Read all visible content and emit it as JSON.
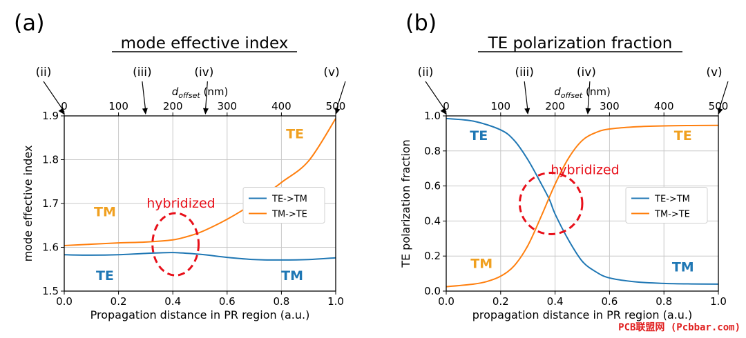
{
  "watermark": "PCB联盟网 (Pcbbar.com)",
  "colors": {
    "blue": "#1f77b4",
    "orange": "#ff7f0e",
    "label_blue": "#1f77b4",
    "label_orange": "#f0a020",
    "red": "#e8101a"
  },
  "chart_data": [
    {
      "type": "line",
      "panel_label": "(a)",
      "title": "mode effective index",
      "xlabel": "Propagation distance in PR region (a.u.)",
      "ylabel": "mode effective index",
      "xlim": [
        0.0,
        1.0
      ],
      "ylim": [
        1.5,
        1.9
      ],
      "xticks": [
        0.0,
        0.2,
        0.4,
        0.6,
        0.8,
        1.0
      ],
      "xtick_labels": [
        "0.0",
        "0.2",
        "0.4",
        "0.6",
        "0.8",
        "1.0"
      ],
      "yticks": [
        1.5,
        1.6,
        1.7,
        1.8,
        1.9
      ],
      "ytick_labels": [
        "1.5",
        "1.6",
        "1.7",
        "1.8",
        "1.9"
      ],
      "top_axis": {
        "label_main": "d",
        "label_sub": "offset",
        "label_unit": "(nm)",
        "ticks": [
          0,
          100,
          200,
          300,
          400,
          500
        ],
        "tick_labels": [
          "0",
          "100",
          "200",
          "300",
          "400",
          "500"
        ],
        "range": [
          0,
          500
        ]
      },
      "markers": [
        {
          "label": "(ii)",
          "x": 0
        },
        {
          "label": "(iii)",
          "x": 150
        },
        {
          "label": "(iv)",
          "x": 260
        },
        {
          "label": "(v)",
          "x": 500
        }
      ],
      "series": [
        {
          "name": "TE->TM",
          "color": "#1f77b4",
          "x": [
            0.0,
            0.1,
            0.2,
            0.3,
            0.4,
            0.5,
            0.6,
            0.7,
            0.8,
            0.9,
            1.0
          ],
          "values": [
            1.583,
            1.582,
            1.583,
            1.586,
            1.588,
            1.584,
            1.577,
            1.572,
            1.571,
            1.572,
            1.576
          ]
        },
        {
          "name": "TM->TE",
          "color": "#ff7f0e",
          "x": [
            0.0,
            0.1,
            0.2,
            0.3,
            0.4,
            0.45,
            0.5,
            0.55,
            0.6,
            0.65,
            0.7,
            0.8,
            0.9,
            1.0
          ],
          "values": [
            1.604,
            1.607,
            1.61,
            1.612,
            1.617,
            1.624,
            1.634,
            1.648,
            1.664,
            1.682,
            1.702,
            1.748,
            1.797,
            1.894
          ]
        }
      ],
      "legend": {
        "placement": "center-right",
        "entries": [
          "TE->TM",
          "TM->TE"
        ]
      },
      "annotations": [
        {
          "text": "TE",
          "x": 0.85,
          "y": 1.858,
          "color": "orange"
        },
        {
          "text": "TM",
          "x": 0.15,
          "y": 1.68,
          "color": "orange"
        },
        {
          "text": "TE",
          "x": 0.15,
          "y": 1.535,
          "color": "blue"
        },
        {
          "text": "TM",
          "x": 0.84,
          "y": 1.535,
          "color": "blue"
        },
        {
          "text": "hybridized",
          "x": 0.43,
          "y": 1.7,
          "color": "red"
        }
      ],
      "circle": {
        "cx": 0.41,
        "cy": 1.607,
        "rx": 0.085,
        "ry": 0.071
      }
    },
    {
      "type": "line",
      "panel_label": "(b)",
      "title": "TE polarization fraction",
      "xlabel": "propagation distance in PR region (a.u.)",
      "ylabel": "TE polarization fraction",
      "xlim": [
        0.0,
        1.0
      ],
      "ylim": [
        0.0,
        1.0
      ],
      "xticks": [
        0.0,
        0.2,
        0.4,
        0.6,
        0.8,
        1.0
      ],
      "xtick_labels": [
        "0.0",
        "0.2",
        "0.4",
        "0.6",
        "0.8",
        "1.0"
      ],
      "yticks": [
        0.0,
        0.2,
        0.4,
        0.6,
        0.8,
        1.0
      ],
      "ytick_labels": [
        "0.0",
        "0.2",
        "0.4",
        "0.6",
        "0.8",
        "1.0"
      ],
      "top_axis": {
        "label_main": "d",
        "label_sub": "offset",
        "label_unit": "(nm)",
        "ticks": [
          0,
          100,
          200,
          300,
          400,
          500
        ],
        "tick_labels": [
          "0",
          "100",
          "200",
          "300",
          "400",
          "500"
        ],
        "range": [
          0,
          500
        ]
      },
      "markers": [
        {
          "label": "(ii)",
          "x": 0
        },
        {
          "label": "(iii)",
          "x": 150
        },
        {
          "label": "(iv)",
          "x": 260
        },
        {
          "label": "(v)",
          "x": 500
        }
      ],
      "series": [
        {
          "name": "TE->TM",
          "color": "#1f77b4",
          "x": [
            0.0,
            0.1,
            0.2,
            0.25,
            0.3,
            0.35,
            0.38,
            0.4,
            0.45,
            0.5,
            0.55,
            0.6,
            0.7,
            0.8,
            0.9,
            1.0
          ],
          "values": [
            0.985,
            0.97,
            0.92,
            0.86,
            0.75,
            0.61,
            0.52,
            0.44,
            0.29,
            0.17,
            0.11,
            0.075,
            0.052,
            0.044,
            0.041,
            0.04
          ]
        },
        {
          "name": "TM->TE",
          "color": "#ff7f0e",
          "x": [
            0.0,
            0.1,
            0.15,
            0.2,
            0.25,
            0.3,
            0.35,
            0.4,
            0.45,
            0.5,
            0.55,
            0.6,
            0.7,
            0.8,
            0.9,
            1.0
          ],
          "values": [
            0.025,
            0.04,
            0.055,
            0.085,
            0.145,
            0.26,
            0.43,
            0.61,
            0.76,
            0.86,
            0.905,
            0.925,
            0.938,
            0.943,
            0.945,
            0.946
          ]
        }
      ],
      "legend": {
        "placement": "center-right",
        "entries": [
          "TE->TM",
          "TM->TE"
        ]
      },
      "annotations": [
        {
          "text": "TE",
          "x": 0.12,
          "y": 0.885,
          "color": "blue"
        },
        {
          "text": "TE",
          "x": 0.87,
          "y": 0.885,
          "color": "orange"
        },
        {
          "text": "hybridized",
          "x": 0.51,
          "y": 0.69,
          "color": "red"
        },
        {
          "text": "TM",
          "x": 0.13,
          "y": 0.155,
          "color": "orange"
        },
        {
          "text": "TM",
          "x": 0.87,
          "y": 0.135,
          "color": "blue"
        }
      ],
      "circle": {
        "cx": 0.385,
        "cy": 0.5,
        "rx": 0.115,
        "ry": 0.175
      }
    }
  ]
}
